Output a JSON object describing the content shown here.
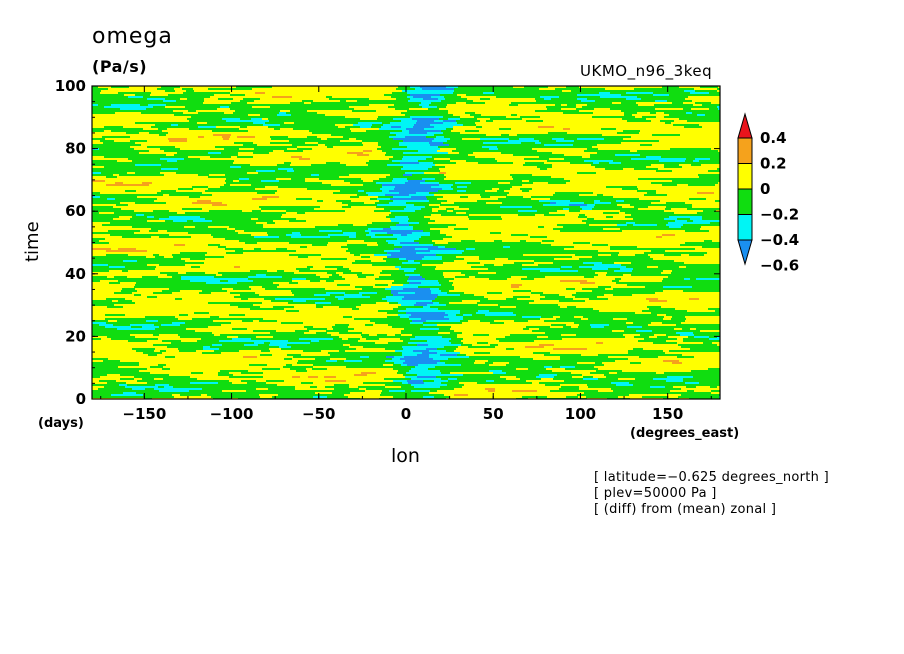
{
  "chart_data": {
    "type": "heatmap",
    "title": "omega",
    "units": "(Pa/s)",
    "model_label": "UKMO_n96_3keq",
    "ylabel": "time",
    "xlabel": "lon",
    "y_unit": "(days)",
    "x_unit": "(degrees_east)",
    "xlim": [
      -180,
      180
    ],
    "ylim": [
      0,
      100
    ],
    "x_ticks": [
      -150,
      -100,
      -50,
      0,
      50,
      100,
      150
    ],
    "x_tick_labels": [
      "−150",
      "−100",
      "−50",
      "0",
      "50",
      "100",
      "150"
    ],
    "y_ticks": [
      0,
      20,
      40,
      60,
      80,
      100
    ],
    "y_tick_labels": [
      "0",
      "20",
      "40",
      "60",
      "80",
      "100"
    ],
    "colorbar": {
      "levels": [
        0.4,
        0.2,
        0,
        -0.2,
        -0.4,
        -0.6
      ],
      "labels": [
        "0.4",
        "0.2",
        "0",
        "−0.2",
        "−0.4",
        "−0.6"
      ],
      "colors": [
        "#e8141c",
        "#f5a21c",
        "#ffff00",
        "#10dd10",
        "#00f5f5",
        "#1a8ff0"
      ]
    },
    "field_colors": {
      "above_0.2": "#f5a21c",
      "0_to_0.2": "#ffff00",
      "-0.2_to_0": "#10dd10",
      "-0.4_to_-0.2": "#00f5f5",
      "below_-0.4": "#1a8ff0"
    },
    "annotations": [
      "[ latitude=−0.625 degrees_north ]",
      "[ plev=50000 Pa ]",
      "[ (diff) from (mean) zonal ]"
    ]
  }
}
